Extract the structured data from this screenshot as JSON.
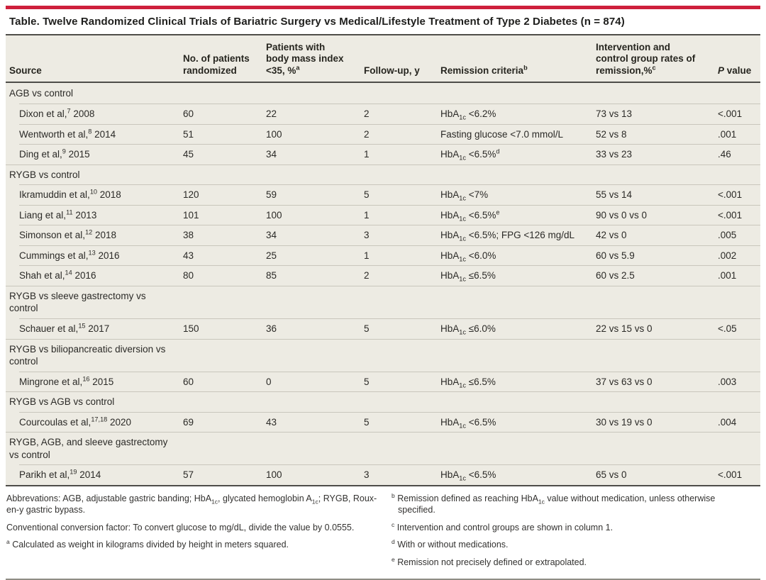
{
  "colors": {
    "accent_red": "#CE203C",
    "panel_cream": "#EDEBE3",
    "rule_dark": "#4e4d49",
    "row_divider": "#c9c6bc"
  },
  "table": {
    "title": "Table. Twelve Randomized Clinical Trials of Bariatric Surgery vs Medical/Lifestyle Treatment of Type 2 Diabetes (n = 874)",
    "columns": [
      {
        "key": "source",
        "label": "Source"
      },
      {
        "key": "n",
        "label": "No. of patients randomized"
      },
      {
        "key": "bmi",
        "label": "Patients with body mass index <35, %^a^"
      },
      {
        "key": "followup",
        "label": "Follow-up, y"
      },
      {
        "key": "criteria",
        "label": "Remission criteria^b^"
      },
      {
        "key": "rates",
        "label": "Intervention and control group rates of remission,%^c^"
      },
      {
        "key": "p",
        "label": "*P* value"
      }
    ],
    "groups": [
      {
        "label": "AGB vs control",
        "rows": [
          {
            "source": "Dixon et al,^7^ 2008",
            "n": "60",
            "bmi": "22",
            "followup": "2",
            "criteria": "HbA~1c~ <6.2%",
            "rates": "73 vs 13",
            "p": "<.001"
          },
          {
            "source": "Wentworth et al,^8^ 2014",
            "n": "51",
            "bmi": "100",
            "followup": "2",
            "criteria": "Fasting glucose <7.0 mmol/L",
            "rates": "52 vs 8",
            "p": ".001"
          },
          {
            "source": "Ding et al,^9^ 2015",
            "n": "45",
            "bmi": "34",
            "followup": "1",
            "criteria": "HbA~1c~ <6.5%^d^",
            "rates": "33 vs 23",
            "p": ".46"
          }
        ]
      },
      {
        "label": "RYGB vs control",
        "rows": [
          {
            "source": "Ikramuddin et al,^10^ 2018",
            "n": "120",
            "bmi": "59",
            "followup": "5",
            "criteria": "HbA~1c~ <7%",
            "rates": "55 vs 14",
            "p": "<.001"
          },
          {
            "source": "Liang et al,^11^ 2013",
            "n": "101",
            "bmi": "100",
            "followup": "1",
            "criteria": "HbA~1c~ <6.5%^e^",
            "rates": "90 vs 0 vs 0",
            "p": "<.001"
          },
          {
            "source": "Simonson et al,^12^ 2018",
            "n": "38",
            "bmi": "34",
            "followup": "3",
            "criteria": "HbA~1c~ <6.5%; FPG <126 mg/dL",
            "rates": "42 vs 0",
            "p": ".005"
          },
          {
            "source": "Cummings et al,^13^ 2016",
            "n": "43",
            "bmi": "25",
            "followup": "1",
            "criteria": "HbA~1c~ <6.0%",
            "rates": "60 vs 5.9",
            "p": ".002"
          },
          {
            "source": "Shah et al,^14^ 2016",
            "n": "80",
            "bmi": "85",
            "followup": "2",
            "criteria": "HbA~1c~ ≤6.5%",
            "rates": "60 vs 2.5",
            "p": ".001"
          }
        ]
      },
      {
        "label": "RYGB vs sleeve gastrectomy vs control",
        "rows": [
          {
            "source": "Schauer et al,^15^ 2017",
            "n": "150",
            "bmi": "36",
            "followup": "5",
            "criteria": "HbA~1c~ ≤6.0%",
            "rates": "22 vs 15 vs 0",
            "p": "<.05"
          }
        ]
      },
      {
        "label": "RYGB vs biliopancreatic diversion vs control",
        "rows": [
          {
            "source": "Mingrone et al,^16^ 2015",
            "n": "60",
            "bmi": "0",
            "followup": "5",
            "criteria": "HbA~1c~ ≤6.5%",
            "rates": "37 vs 63 vs 0",
            "p": ".003"
          }
        ]
      },
      {
        "label": "RYGB vs AGB vs control",
        "rows": [
          {
            "source": "Courcoulas et al,^17,18^ 2020",
            "n": "69",
            "bmi": "43",
            "followup": "5",
            "criteria": "HbA~1c~ <6.5%",
            "rates": "30 vs 19 vs 0",
            "p": ".004"
          }
        ]
      },
      {
        "label": "RYGB, AGB, and sleeve gastrectomy vs control",
        "rows": [
          {
            "source": "Parikh et al,^19^ 2014",
            "n": "57",
            "bmi": "100",
            "followup": "3",
            "criteria": "HbA~1c~ <6.5%",
            "rates": "65 vs 0",
            "p": "<.001"
          }
        ]
      }
    ]
  },
  "footnotes": {
    "left": [
      {
        "marker": "",
        "text": "Abbrevations: AGB, adjustable gastric banding; HbA~1c~, glycated hemoglobin A~1c~; RYGB, Roux-en-y gastric bypass."
      },
      {
        "marker": "",
        "text": "Conventional conversion factor: To convert glucose to mg/dL, divide the value by 0.0555."
      },
      {
        "marker": "a",
        "text": "Calculated as weight in kilograms divided by height in meters squared."
      }
    ],
    "right": [
      {
        "marker": "b",
        "text": "Remission defined as reaching HbA~1c~ value without medication, unless otherwise specified."
      },
      {
        "marker": "c",
        "text": "Intervention and control groups are shown in column 1."
      },
      {
        "marker": "d",
        "text": "With or without medications."
      },
      {
        "marker": "e",
        "text": "Remission not precisely defined or extrapolated."
      }
    ]
  }
}
